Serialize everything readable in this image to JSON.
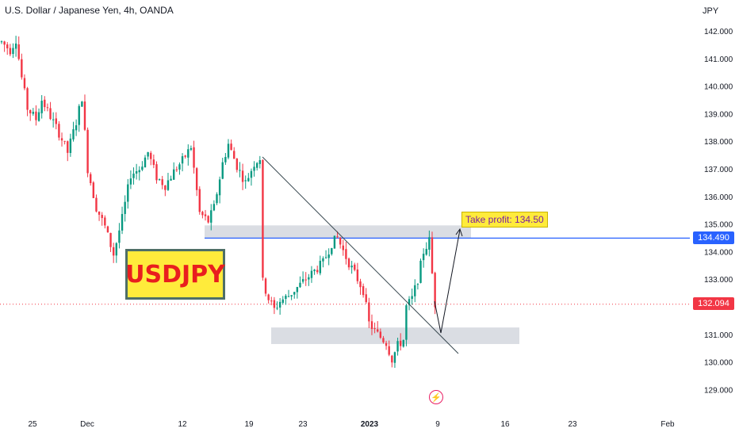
{
  "header": {
    "title": "U.S. Dollar / Japanese Yen, 4h, OANDA",
    "currency": "JPY"
  },
  "annotations": {
    "symbol_label": "USDJPY",
    "take_profit_label": "Take profit: 134.50",
    "target_price": "134.490",
    "current_price": "132.094"
  },
  "icons": {
    "event_marker": "lightning-icon"
  },
  "chart_data": {
    "type": "candlestick",
    "title": "U.S. Dollar / Japanese Yen, 4h, OANDA",
    "ylabel": "JPY",
    "ylim": [
      128.5,
      142.5
    ],
    "y_ticks": [
      "142.000",
      "141.000",
      "140.000",
      "139.000",
      "138.000",
      "137.000",
      "136.000",
      "135.000",
      "134.000",
      "133.000",
      "132.000",
      "131.000",
      "130.000",
      "129.000"
    ],
    "x_ticks": [
      "25",
      "Dec",
      "12",
      "19",
      "23",
      "2023",
      "9",
      "16",
      "23",
      "Feb"
    ],
    "price_path": [
      {
        "i": 0,
        "p": 141.6
      },
      {
        "i": 3,
        "p": 141.3
      },
      {
        "i": 5,
        "p": 141.7
      },
      {
        "i": 7,
        "p": 140.3
      },
      {
        "i": 9,
        "p": 139.2
      },
      {
        "i": 12,
        "p": 138.8
      },
      {
        "i": 14,
        "p": 139.5
      },
      {
        "i": 17,
        "p": 138.9
      },
      {
        "i": 20,
        "p": 138.3
      },
      {
        "i": 23,
        "p": 137.6
      },
      {
        "i": 26,
        "p": 138.7
      },
      {
        "i": 28,
        "p": 139.6
      },
      {
        "i": 30,
        "p": 137.0
      },
      {
        "i": 33,
        "p": 135.6
      },
      {
        "i": 36,
        "p": 134.9
      },
      {
        "i": 39,
        "p": 133.9
      },
      {
        "i": 42,
        "p": 135.2
      },
      {
        "i": 45,
        "p": 136.8
      },
      {
        "i": 48,
        "p": 137.0
      },
      {
        "i": 51,
        "p": 137.6
      },
      {
        "i": 54,
        "p": 136.7
      },
      {
        "i": 57,
        "p": 136.4
      },
      {
        "i": 60,
        "p": 136.9
      },
      {
        "i": 63,
        "p": 137.3
      },
      {
        "i": 66,
        "p": 137.8
      },
      {
        "i": 69,
        "p": 135.4
      },
      {
        "i": 72,
        "p": 135.1
      },
      {
        "i": 74,
        "p": 135.6
      },
      {
        "i": 77,
        "p": 137.2
      },
      {
        "i": 79,
        "p": 137.9
      },
      {
        "i": 82,
        "p": 137.1
      },
      {
        "i": 85,
        "p": 136.5
      },
      {
        "i": 88,
        "p": 137.2
      },
      {
        "i": 90,
        "p": 137.4
      },
      {
        "i": 91,
        "p": 132.9
      },
      {
        "i": 93,
        "p": 132.3
      },
      {
        "i": 95,
        "p": 131.9
      },
      {
        "i": 97,
        "p": 132.2
      },
      {
        "i": 100,
        "p": 132.4
      },
      {
        "i": 104,
        "p": 132.8
      },
      {
        "i": 108,
        "p": 133.2
      },
      {
        "i": 112,
        "p": 133.6
      },
      {
        "i": 115,
        "p": 134.3
      },
      {
        "i": 117,
        "p": 134.5
      },
      {
        "i": 120,
        "p": 133.8
      },
      {
        "i": 123,
        "p": 133.2
      },
      {
        "i": 126,
        "p": 132.6
      },
      {
        "i": 128,
        "p": 131.4
      },
      {
        "i": 131,
        "p": 131.0
      },
      {
        "i": 134,
        "p": 130.7
      },
      {
        "i": 136,
        "p": 130.1
      },
      {
        "i": 138,
        "p": 130.6
      },
      {
        "i": 140,
        "p": 130.8
      },
      {
        "i": 141,
        "p": 132.0
      },
      {
        "i": 143,
        "p": 132.3
      },
      {
        "i": 145,
        "p": 133.0
      },
      {
        "i": 147,
        "p": 134.0
      },
      {
        "i": 149,
        "p": 134.4
      },
      {
        "i": 150,
        "p": 133.2
      },
      {
        "i": 151,
        "p": 132.1
      }
    ],
    "levels": [
      {
        "name": "resistance_zone",
        "from": 134.5,
        "to": 134.95
      },
      {
        "name": "support_zone",
        "from": 130.65,
        "to": 131.25
      },
      {
        "name": "target_line",
        "value": 134.49
      },
      {
        "name": "current_price_line",
        "value": 132.094
      }
    ]
  }
}
